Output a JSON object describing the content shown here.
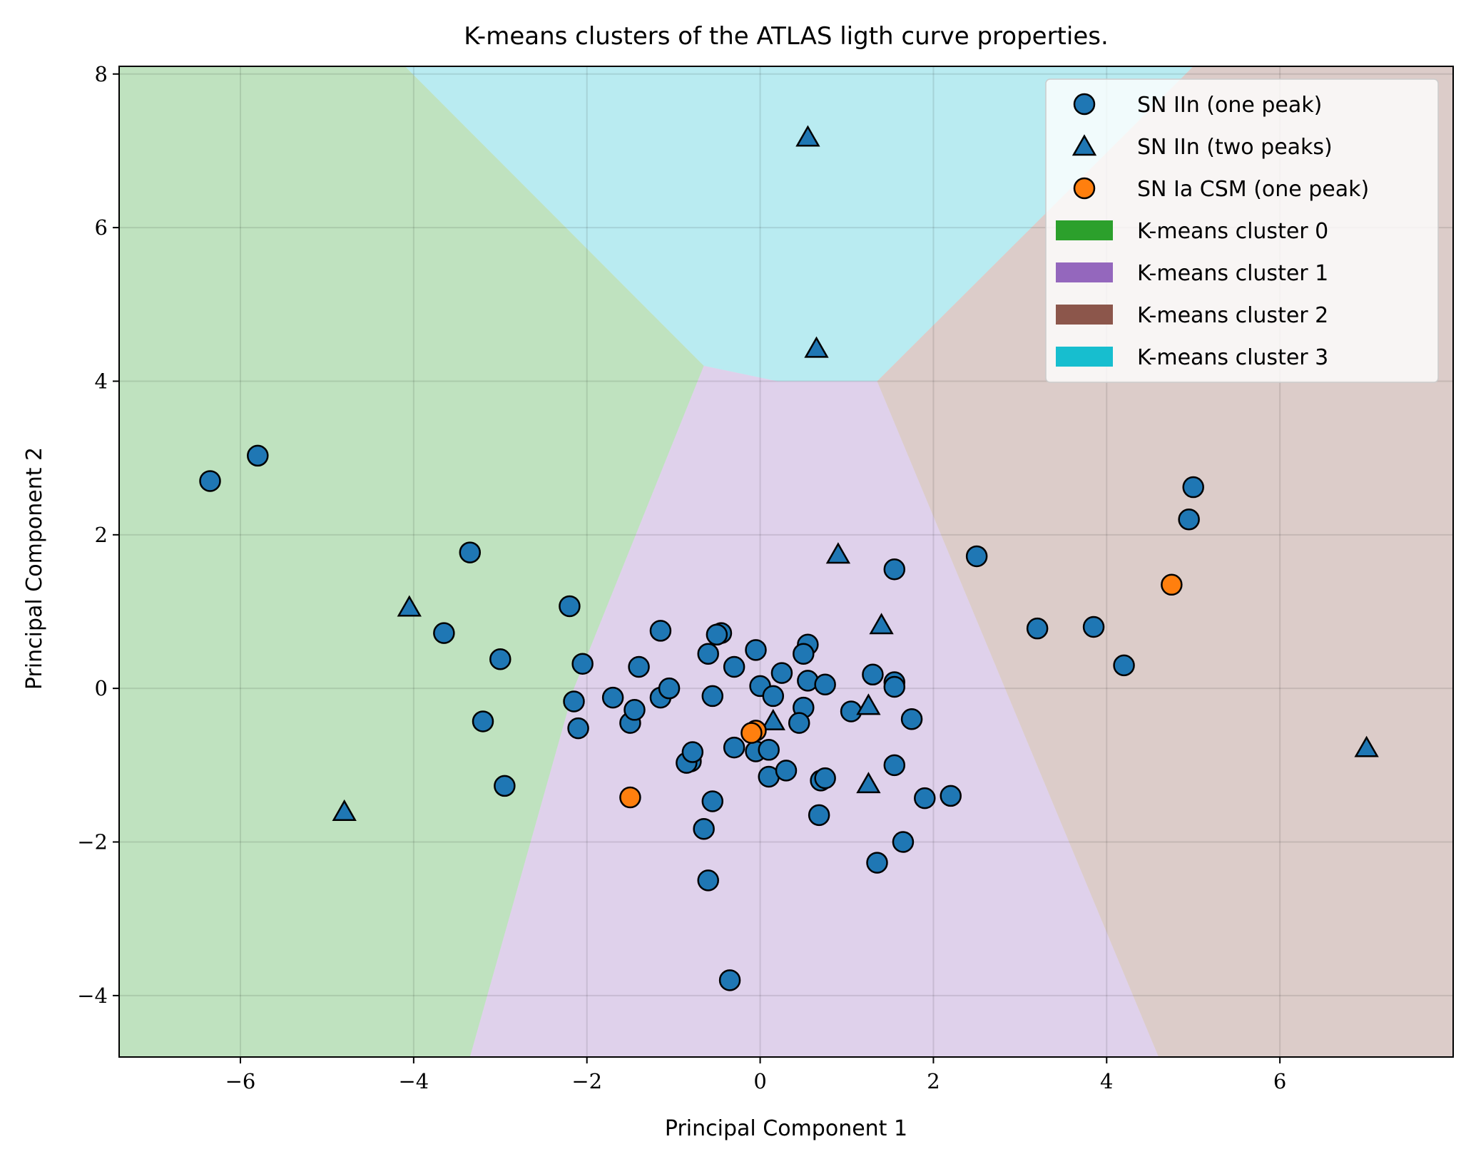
{
  "chart_data": {
    "type": "scatter",
    "title": "K-means clusters of the ATLAS ligth curve properties.",
    "xlabel": "Principal Component 1",
    "ylabel": "Principal Component 2",
    "xlim": [
      -7.4,
      8.0
    ],
    "ylim": [
      -4.8,
      8.1
    ],
    "xticks": [
      -6,
      -4,
      -2,
      0,
      2,
      4,
      6
    ],
    "yticks": [
      -4,
      -2,
      0,
      2,
      4,
      6,
      8
    ],
    "grid": true,
    "legend_position": "top-right",
    "clusters": [
      {
        "name": "K-means cluster 0",
        "color": "#2ca02c",
        "polygon": [
          [
            -7.4,
            -4.8
          ],
          [
            -3.35,
            -4.8
          ],
          [
            -2.15,
            0
          ],
          [
            -0.65,
            4.2
          ],
          [
            -4.1,
            8.1
          ],
          [
            -7.4,
            8.1
          ]
        ]
      },
      {
        "name": "K-means cluster 1",
        "color": "#9467bd",
        "polygon": [
          [
            -3.35,
            -4.8
          ],
          [
            4.6,
            -4.8
          ],
          [
            1.35,
            4.0
          ],
          [
            0.2,
            4.0
          ],
          [
            -0.65,
            4.2
          ],
          [
            -2.15,
            0
          ]
        ]
      },
      {
        "name": "K-means cluster 2",
        "color": "#8c564b",
        "polygon": [
          [
            4.6,
            -4.8
          ],
          [
            8.0,
            -4.8
          ],
          [
            8.0,
            8.1
          ],
          [
            5.0,
            8.1
          ],
          [
            1.35,
            4.0
          ]
        ]
      },
      {
        "name": "K-means cluster 3",
        "color": "#17becf",
        "polygon": [
          [
            -4.1,
            8.1
          ],
          [
            5.0,
            8.1
          ],
          [
            1.35,
            4.0
          ],
          [
            0.2,
            4.0
          ],
          [
            -0.65,
            4.2
          ]
        ]
      }
    ],
    "cluster_alpha": 0.3,
    "series": [
      {
        "name": "SN IIn (one peak)",
        "marker": "circle",
        "color": "#1f77b4",
        "points": [
          [
            -6.35,
            2.7
          ],
          [
            -5.8,
            3.03
          ],
          [
            -3.35,
            1.77
          ],
          [
            -3.65,
            0.72
          ],
          [
            -3.0,
            0.38
          ],
          [
            -3.2,
            -0.43
          ],
          [
            -2.95,
            -1.27
          ],
          [
            -2.2,
            1.07
          ],
          [
            -2.05,
            0.32
          ],
          [
            -2.15,
            -0.17
          ],
          [
            -2.1,
            -0.52
          ],
          [
            -1.7,
            -0.12
          ],
          [
            -1.5,
            -0.45
          ],
          [
            -1.45,
            -0.28
          ],
          [
            -1.4,
            0.28
          ],
          [
            -1.15,
            0.75
          ],
          [
            -1.15,
            -0.12
          ],
          [
            -1.05,
            0.0
          ],
          [
            -0.8,
            -0.95
          ],
          [
            -0.85,
            -0.97
          ],
          [
            -0.78,
            -0.83
          ],
          [
            -0.6,
            0.45
          ],
          [
            -0.45,
            0.72
          ],
          [
            -0.5,
            0.7
          ],
          [
            -0.55,
            -0.1
          ],
          [
            -0.3,
            0.28
          ],
          [
            -0.3,
            -0.77
          ],
          [
            -0.05,
            0.5
          ],
          [
            0.0,
            0.03
          ],
          [
            0.15,
            -0.1
          ],
          [
            0.25,
            0.2
          ],
          [
            -0.05,
            -0.82
          ],
          [
            0.1,
            -0.8
          ],
          [
            0.1,
            -1.15
          ],
          [
            0.3,
            -1.07
          ],
          [
            -0.55,
            -1.47
          ],
          [
            -0.65,
            -1.83
          ],
          [
            -0.6,
            -2.5
          ],
          [
            -0.35,
            -3.8
          ],
          [
            0.55,
            0.57
          ],
          [
            0.5,
            0.45
          ],
          [
            0.55,
            0.1
          ],
          [
            0.5,
            -0.25
          ],
          [
            0.45,
            -0.45
          ],
          [
            0.75,
            0.05
          ],
          [
            0.7,
            -1.2
          ],
          [
            0.75,
            -1.17
          ],
          [
            0.68,
            -1.65
          ],
          [
            1.05,
            -0.3
          ],
          [
            1.3,
            0.18
          ],
          [
            1.55,
            0.08
          ],
          [
            1.55,
            0.02
          ],
          [
            1.55,
            1.55
          ],
          [
            1.75,
            -0.4
          ],
          [
            1.55,
            -1.0
          ],
          [
            1.65,
            -2.0
          ],
          [
            1.35,
            -2.27
          ],
          [
            1.9,
            -1.43
          ],
          [
            2.2,
            -1.4
          ],
          [
            2.5,
            1.72
          ],
          [
            3.2,
            0.78
          ],
          [
            3.85,
            0.8
          ],
          [
            4.2,
            0.3
          ],
          [
            4.95,
            2.2
          ],
          [
            5.0,
            2.62
          ]
        ]
      },
      {
        "name": "SN IIn (two peaks)",
        "marker": "triangle",
        "color": "#1f77b4",
        "points": [
          [
            0.55,
            7.15
          ],
          [
            0.65,
            4.4
          ],
          [
            -4.05,
            1.03
          ],
          [
            -4.8,
            -1.63
          ],
          [
            0.9,
            1.72
          ],
          [
            1.4,
            0.8
          ],
          [
            1.25,
            -0.25
          ],
          [
            0.15,
            -0.45
          ],
          [
            1.25,
            -1.27
          ],
          [
            7.0,
            -0.8
          ]
        ]
      },
      {
        "name": "SN Ia CSM (one peak)",
        "marker": "circle",
        "color": "#ff7f0e",
        "points": [
          [
            -0.05,
            -0.55
          ],
          [
            -0.1,
            -0.58
          ],
          [
            -1.5,
            -1.42
          ],
          [
            4.75,
            1.35
          ]
        ]
      }
    ]
  }
}
